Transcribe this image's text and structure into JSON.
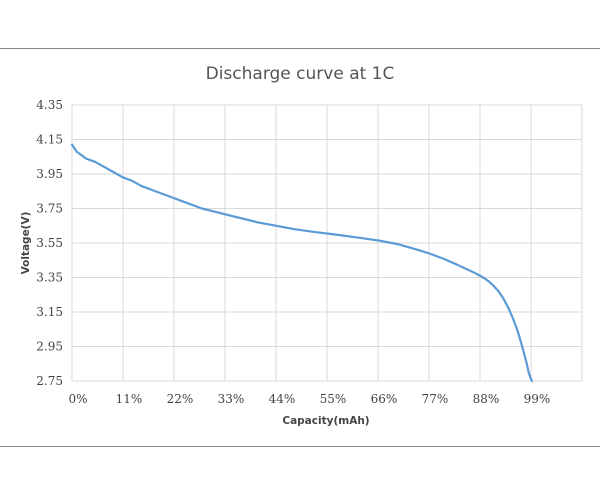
{
  "chart_data": {
    "type": "line",
    "title": "Discharge curve at 1C",
    "xlabel": "Capacity(mAh)",
    "ylabel": "Voltage(V)",
    "x_tick_labels": [
      "0%",
      "11%",
      "22%",
      "33%",
      "44%",
      "55%",
      "66%",
      "77%",
      "88%",
      "99%"
    ],
    "y_tick_labels": [
      "4.35",
      "4.15",
      "3.95",
      "3.75",
      "3.55",
      "3.35",
      "3.15",
      "2.95",
      "2.75"
    ],
    "xlim": [
      0,
      110
    ],
    "ylim": [
      2.75,
      4.35
    ],
    "grid": true,
    "legend": "none",
    "line_color": "#5b9bd5",
    "series": [
      {
        "x": [
          0,
          0.5,
          1,
          2,
          3,
          5,
          7,
          9,
          11,
          13,
          15,
          17,
          19,
          22,
          25,
          28,
          31,
          34,
          37,
          40,
          44,
          48,
          52,
          55,
          58,
          62,
          66,
          70,
          74,
          77,
          80,
          83,
          85,
          87,
          88,
          89,
          90,
          91,
          92,
          93,
          94,
          95,
          96,
          97,
          97.5,
          98,
          98.5,
          99,
          99.2
        ],
        "y": [
          4.12,
          4.1,
          4.08,
          4.06,
          4.04,
          4.02,
          3.99,
          3.96,
          3.93,
          3.91,
          3.88,
          3.86,
          3.84,
          3.81,
          3.78,
          3.75,
          3.73,
          3.71,
          3.69,
          3.67,
          3.65,
          3.63,
          3.615,
          3.605,
          3.595,
          3.58,
          3.565,
          3.545,
          3.515,
          3.49,
          3.46,
          3.425,
          3.4,
          3.375,
          3.36,
          3.345,
          3.325,
          3.3,
          3.27,
          3.23,
          3.18,
          3.12,
          3.05,
          2.96,
          2.91,
          2.86,
          2.8,
          2.76,
          2.75
        ]
      }
    ]
  }
}
